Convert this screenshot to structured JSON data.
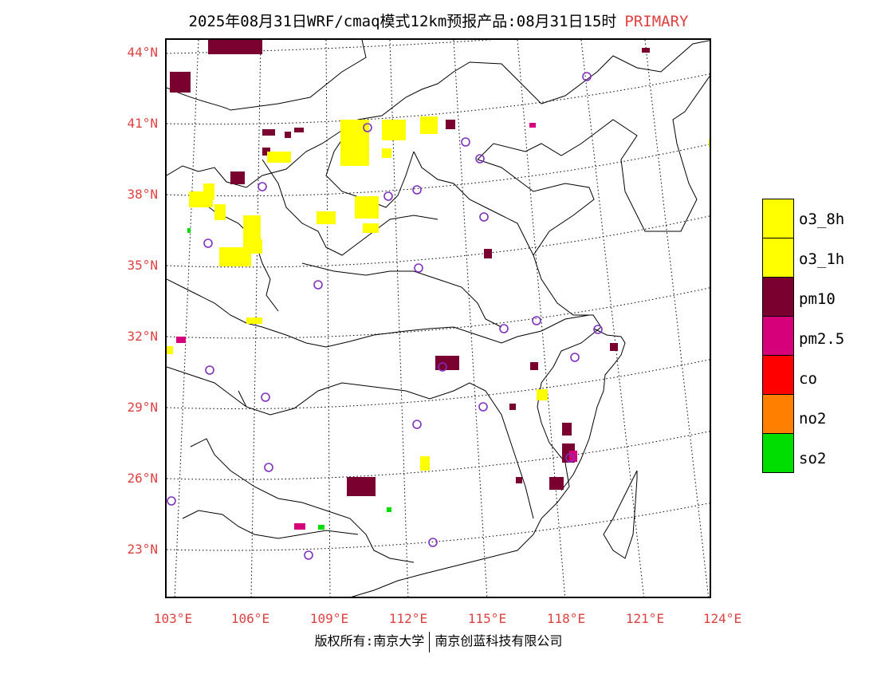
{
  "title": {
    "main": "2025年08月31日WRF/cmaq模式12km预报产品:08月31日15时",
    "tag": "PRIMARY"
  },
  "lat_labels": [
    "44°N",
    "41°N",
    "38°N",
    "35°N",
    "32°N",
    "29°N",
    "26°N",
    "23°N"
  ],
  "lon_labels": [
    "103°E",
    "106°E",
    "109°E",
    "112°E",
    "115°E",
    "118°E",
    "121°E",
    "124°E"
  ],
  "legend": [
    {
      "label": "o3_8h",
      "color": "#ffff00"
    },
    {
      "label": "o3_1h",
      "color": "#ffff00"
    },
    {
      "label": "pm10",
      "color": "#7a0030"
    },
    {
      "label": "pm2.5",
      "color": "#d6007a"
    },
    {
      "label": "co",
      "color": "#ff0000"
    },
    {
      "label": "no2",
      "color": "#ff8000"
    },
    {
      "label": "so2",
      "color": "#00dd00"
    }
  ],
  "footer": {
    "left": "版权所有:南京大学",
    "right": "南京创蓝科技有限公司"
  },
  "colors": {
    "label_red": "#e04040",
    "station_ring": "#8030c0"
  }
}
